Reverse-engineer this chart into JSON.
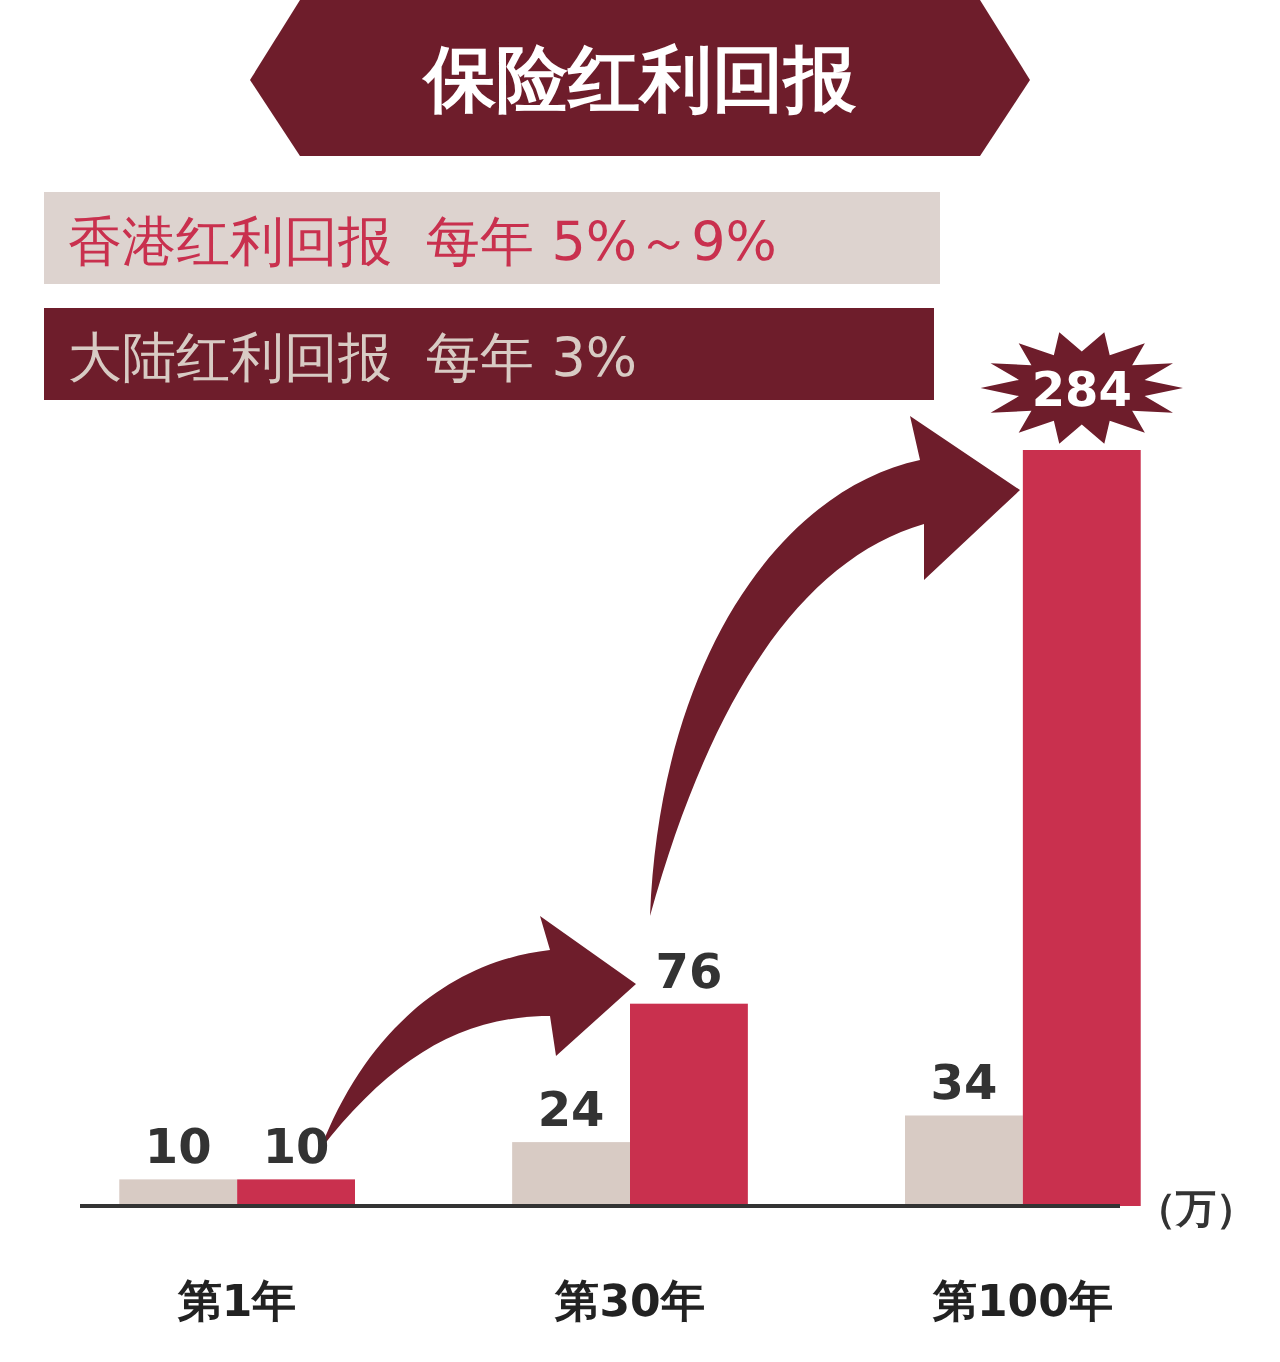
{
  "chart_data": {
    "type": "bar",
    "title": "保险红利回报",
    "ylabel": "（万）",
    "categories": [
      "第1年",
      "第30年",
      "第100年"
    ],
    "series": [
      {
        "name": "大陆红利回报  每年 3%",
        "color": "#d8cbc4",
        "values": [
          10,
          24,
          34
        ]
      },
      {
        "name": "香港红利回报  每年 5%～9%",
        "color": "#c9304e",
        "values": [
          10,
          76,
          284
        ]
      }
    ],
    "data_labels": true,
    "legend": "top left"
  }
}
